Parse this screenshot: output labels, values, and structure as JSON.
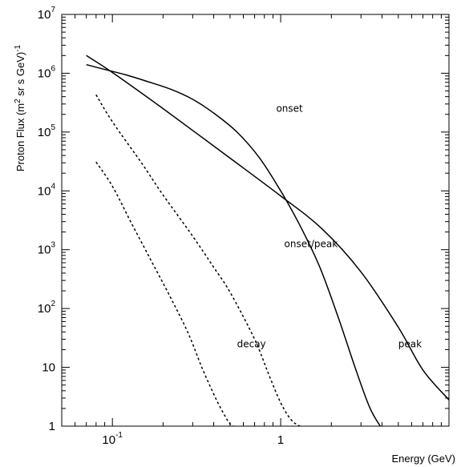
{
  "chart_data": {
    "type": "line",
    "xlabel": "Energy (GeV)",
    "ylabel": {
      "prefix": "Proton Flux (m",
      "sup1": "2",
      "middle": " sr s GeV)",
      "sup2": "-1"
    },
    "x_scale": "log",
    "y_scale": "log",
    "xlim": [
      0.05,
      10
    ],
    "ylim": [
      1,
      10000000
    ],
    "grid": false,
    "legend": "none",
    "x_ticks": [
      {
        "value": 0.1,
        "base": "10",
        "exp": "-1"
      },
      {
        "value": 1,
        "base": "1",
        "exp": ""
      }
    ],
    "y_ticks": [
      {
        "value": 1,
        "base": "1",
        "exp": ""
      },
      {
        "value": 10,
        "base": "10",
        "exp": ""
      },
      {
        "value": 100,
        "base": "10",
        "exp": "2"
      },
      {
        "value": 1000,
        "base": "10",
        "exp": "3"
      },
      {
        "value": 10000,
        "base": "10",
        "exp": "4"
      },
      {
        "value": 100000,
        "base": "10",
        "exp": "5"
      },
      {
        "value": 1000000,
        "base": "10",
        "exp": "6"
      },
      {
        "value": 10000000,
        "base": "10",
        "exp": "7"
      }
    ],
    "series": [
      {
        "label": "onset",
        "style": "solid",
        "x": [
          0.07,
          0.09,
          0.12,
          0.16,
          0.22,
          0.3,
          0.4,
          0.55,
          0.75,
          1.0,
          1.3,
          1.7,
          2.2,
          2.8,
          3.4,
          4.0
        ],
        "y": [
          1400000,
          1160000,
          940000,
          730000,
          540000,
          360000,
          210000,
          100000,
          36000,
          10000,
          2600,
          520,
          70,
          9,
          2,
          0.9
        ]
      },
      {
        "label": "peak",
        "style": "solid",
        "x": [
          0.07,
          0.1,
          0.2,
          0.5,
          1.0,
          1.75,
          3.0,
          5.0,
          7.0,
          10.0
        ],
        "y": [
          2000000,
          1030000,
          250000,
          36000,
          8200,
          2300,
          420,
          48,
          9,
          2.8
        ]
      },
      {
        "label": "onset/peak",
        "style": "dashed",
        "x": [
          0.08,
          0.1,
          0.15,
          0.2,
          0.3,
          0.4,
          0.5,
          0.7,
          0.85,
          1.0,
          1.15,
          1.3,
          1.5
        ],
        "y": [
          430000,
          150000,
          29000,
          8500,
          1700,
          500,
          190,
          30,
          7.5,
          2.5,
          1.3,
          1.0,
          0.9
        ]
      },
      {
        "label": "decay",
        "style": "dashed",
        "x": [
          0.08,
          0.1,
          0.13,
          0.17,
          0.22,
          0.28,
          0.34,
          0.4,
          0.45,
          0.5,
          0.55,
          0.6
        ],
        "y": [
          31000,
          12000,
          2800,
          650,
          160,
          40,
          10,
          3.5,
          1.8,
          1.1,
          0.95,
          0.9
        ]
      }
    ],
    "annotations": [
      {
        "text": "onset",
        "x": 0.94,
        "y": 220000
      },
      {
        "text": "onset/peak",
        "x": 1.05,
        "y": 1100
      },
      {
        "text": "decay",
        "x": 0.55,
        "y": 22
      },
      {
        "text": "peak",
        "x": 5.0,
        "y": 22
      }
    ]
  }
}
